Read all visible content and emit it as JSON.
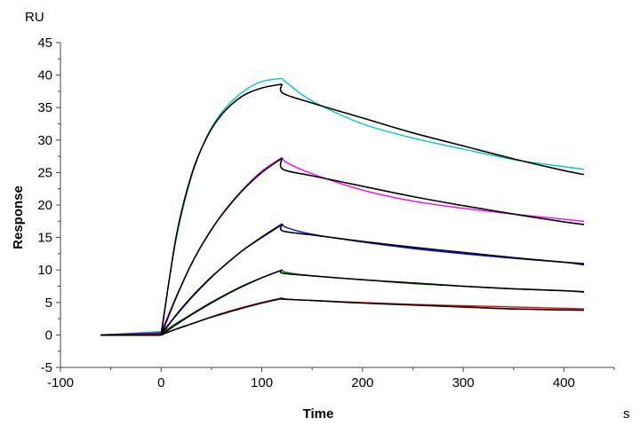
{
  "chart_data": {
    "type": "line",
    "title": "",
    "xlabel": "Time",
    "xunit": "s",
    "ylabel": "Response",
    "yunit": "RU",
    "xlim": [
      -100,
      450
    ],
    "ylim": [
      -5,
      45
    ],
    "xticks": [
      -100,
      0,
      100,
      200,
      300,
      400
    ],
    "yticks": [
      -5,
      0,
      5,
      10,
      15,
      20,
      25,
      30,
      35,
      40,
      45
    ],
    "grid": false,
    "legend": "none",
    "data_x": [
      -60,
      0,
      15,
      30,
      45,
      60,
      80,
      100,
      120,
      125,
      150,
      200,
      250,
      300,
      350,
      400,
      420
    ],
    "fit_x": [
      -60,
      0,
      15,
      30,
      45,
      60,
      80,
      100,
      120,
      121,
      150,
      200,
      250,
      300,
      350,
      400,
      420
    ],
    "series": [
      {
        "color": "#00c8c8",
        "kind": "measured",
        "values": [
          0,
          0.5,
          14.8,
          24.3,
          30.4,
          34.2,
          37.3,
          39.0,
          39.5,
          38.8,
          36.0,
          32.5,
          30.3,
          28.6,
          27.0,
          25.9,
          25.5
        ]
      },
      {
        "color": "#ff00ff",
        "kind": "measured",
        "values": [
          0,
          0.4,
          5.9,
          10.9,
          15.0,
          18.5,
          22.2,
          25.2,
          27.3,
          26.5,
          24.8,
          22.3,
          20.6,
          19.5,
          18.6,
          17.8,
          17.5
        ]
      },
      {
        "color": "#0000ff",
        "kind": "measured",
        "values": [
          0,
          0.3,
          3.0,
          5.7,
          8.1,
          10.3,
          12.9,
          15.1,
          17.1,
          16.5,
          15.5,
          14.3,
          13.3,
          12.5,
          11.8,
          11.2,
          11.0
        ]
      },
      {
        "color": "#008000",
        "kind": "measured",
        "values": [
          0,
          0.2,
          1.8,
          3.2,
          4.6,
          5.9,
          7.5,
          8.8,
          10.0,
          9.6,
          9.1,
          8.5,
          7.9,
          7.5,
          7.1,
          6.8,
          6.7
        ]
      },
      {
        "color": "#ff0000",
        "kind": "measured",
        "values": [
          0,
          0.1,
          0.9,
          1.7,
          2.5,
          3.3,
          4.2,
          5.0,
          5.7,
          5.5,
          5.3,
          5.0,
          4.7,
          4.5,
          4.3,
          4.1,
          4.0
        ]
      },
      {
        "color": "#000000",
        "kind": "fit",
        "values": [
          0,
          0,
          15.2,
          24.6,
          30.3,
          33.9,
          36.7,
          38.0,
          38.6,
          37.2,
          35.7,
          33.4,
          31.1,
          29.1,
          27.1,
          25.3,
          24.7
        ]
      },
      {
        "color": "#000000",
        "kind": "fit",
        "values": [
          0,
          0,
          5.8,
          10.9,
          15.0,
          18.4,
          22.1,
          25.0,
          27.2,
          25.5,
          24.5,
          22.9,
          21.3,
          19.9,
          18.6,
          17.4,
          17.0
        ]
      },
      {
        "color": "#000000",
        "kind": "fit",
        "values": [
          0,
          0,
          3.1,
          5.8,
          8.2,
          10.3,
          12.9,
          15.0,
          17.0,
          16.0,
          15.4,
          14.4,
          13.5,
          12.7,
          11.9,
          11.2,
          10.8
        ]
      },
      {
        "color": "#000000",
        "kind": "fit",
        "values": [
          0,
          0,
          1.6,
          3.1,
          4.5,
          5.8,
          7.4,
          8.8,
          10.0,
          9.5,
          9.1,
          8.5,
          8.0,
          7.5,
          7.1,
          6.8,
          6.6
        ]
      },
      {
        "color": "#000000",
        "kind": "fit",
        "values": [
          0,
          0,
          0.9,
          1.7,
          2.5,
          3.2,
          4.1,
          4.9,
          5.6,
          5.5,
          5.3,
          4.9,
          4.6,
          4.3,
          4.0,
          3.85,
          3.8
        ]
      }
    ]
  }
}
